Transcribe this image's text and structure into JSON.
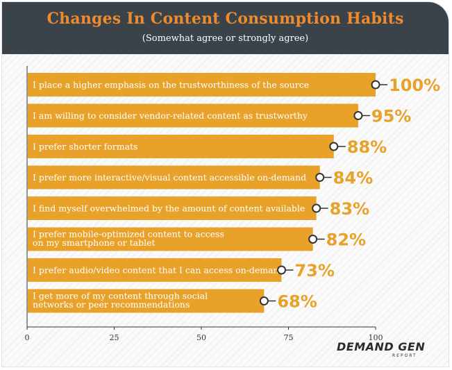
{
  "header": {
    "title": "Changes In Content Consumption Habits",
    "subtitle": "(Somewhat agree or strongly agree)"
  },
  "brand": {
    "name": "DEMAND GEN",
    "sub": "REPORT"
  },
  "colors": {
    "header_bg": "#3a434a",
    "title": "#ef8b2c",
    "bar": "#e8a22a",
    "value": "#e8a22a"
  },
  "chart_data": {
    "type": "bar",
    "orientation": "horizontal",
    "title": "Changes In Content Consumption Habits",
    "subtitle": "(Somewhat agree or strongly agree)",
    "categories": [
      [
        "I place a higher emphasis on the trustworthiness of the source"
      ],
      [
        "I am willing to consider vendor-related content as trustworthy"
      ],
      [
        "I prefer shorter formats"
      ],
      [
        "I prefer more interactive/visual content accessible on-demand"
      ],
      [
        "I find myself overwhelmed by the amount of content available"
      ],
      [
        "I prefer mobile-optimized content to access",
        "on my smartphone or tablet"
      ],
      [
        "I prefer audio/video content that I can access on-demand"
      ],
      [
        "I get more of my content through social",
        "networks or peer recommendations"
      ]
    ],
    "values": [
      100,
      95,
      88,
      84,
      83,
      82,
      73,
      68
    ],
    "value_labels": [
      "100%",
      "95%",
      "88%",
      "84%",
      "83%",
      "82%",
      "73%",
      "68%"
    ],
    "xlim": [
      0,
      100
    ],
    "xticks": [
      0,
      25,
      50,
      75,
      100
    ],
    "xlabel": "",
    "ylabel": "",
    "grid": false,
    "legend": "none"
  }
}
